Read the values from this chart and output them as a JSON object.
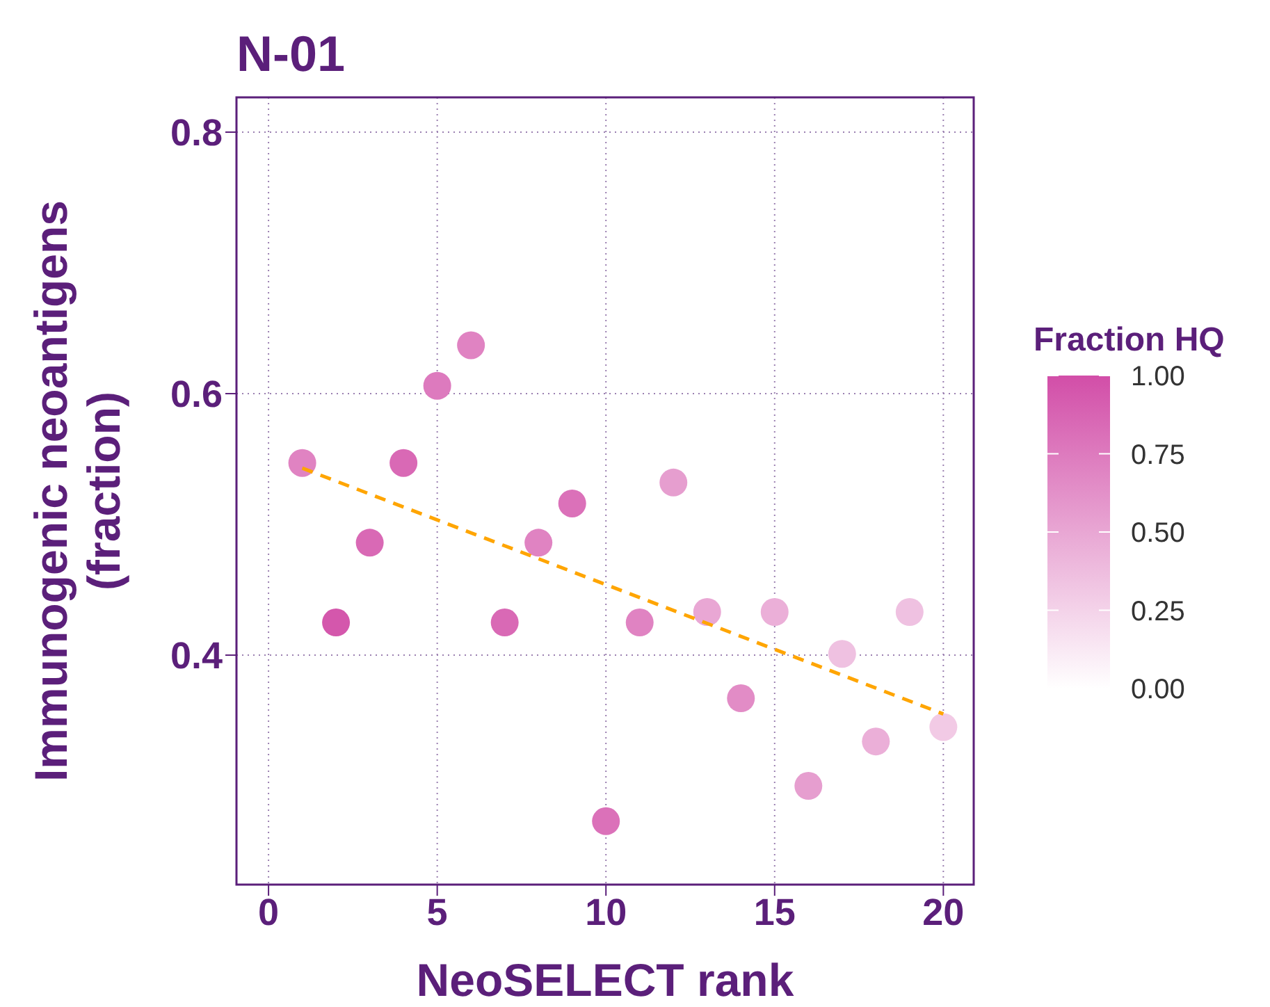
{
  "chart_data": {
    "type": "scatter",
    "title": "N-01",
    "xlabel": "NeoSELECT rank",
    "ylabel": "Immunogenic neoantigens (fraction)",
    "clabel": "Fraction HQ",
    "x": [
      1,
      2,
      3,
      4,
      5,
      6,
      7,
      8,
      9,
      10,
      11,
      12,
      13,
      14,
      15,
      16,
      17,
      18,
      19,
      20
    ],
    "series": [
      {
        "type": "scatter",
        "values": [
          0.547,
          0.425,
          0.486,
          0.547,
          0.606,
          0.637,
          0.425,
          0.486,
          0.516,
          0.273,
          0.425,
          0.532,
          0.433,
          0.367,
          0.433,
          0.3,
          0.401,
          0.334,
          0.433,
          0.345
        ],
        "colors": [
          "#e083c2",
          "#d457ac",
          "#d969b5",
          "#d969b5",
          "#dd7abe",
          "#e083c2",
          "#d969b5",
          "#e083c2",
          "#db71b9",
          "#db71b9",
          "#e083c2",
          "#e69ecf",
          "#e9a7d4",
          "#e28cc6",
          "#ebafd8",
          "#e69ecf",
          "#efc1e1",
          "#ebafd8",
          "#efc1e1",
          "#f2cae5"
        ]
      },
      {
        "type": "line",
        "x": [
          1,
          20
        ],
        "values": [
          0.543,
          0.355
        ],
        "color": "#ffa500",
        "line_style": "dashed",
        "marker": "none"
      }
    ],
    "xlim": [
      -0.95,
      20.9
    ],
    "ylim": [
      0.2245,
      0.8266
    ],
    "xticks": [
      0,
      5,
      10,
      15,
      20
    ],
    "yticks": [
      0.4,
      0.6,
      0.8
    ],
    "clim": [
      0,
      1
    ],
    "cticks": [
      {
        "value": 0,
        "label": "0.00"
      },
      {
        "value": 0.25,
        "label": "0.25"
      },
      {
        "value": 0.5,
        "label": "0.50"
      },
      {
        "value": 0.75,
        "label": "0.75"
      },
      {
        "value": 1,
        "label": "1.00"
      }
    ],
    "grid": true,
    "marker": "circle"
  }
}
